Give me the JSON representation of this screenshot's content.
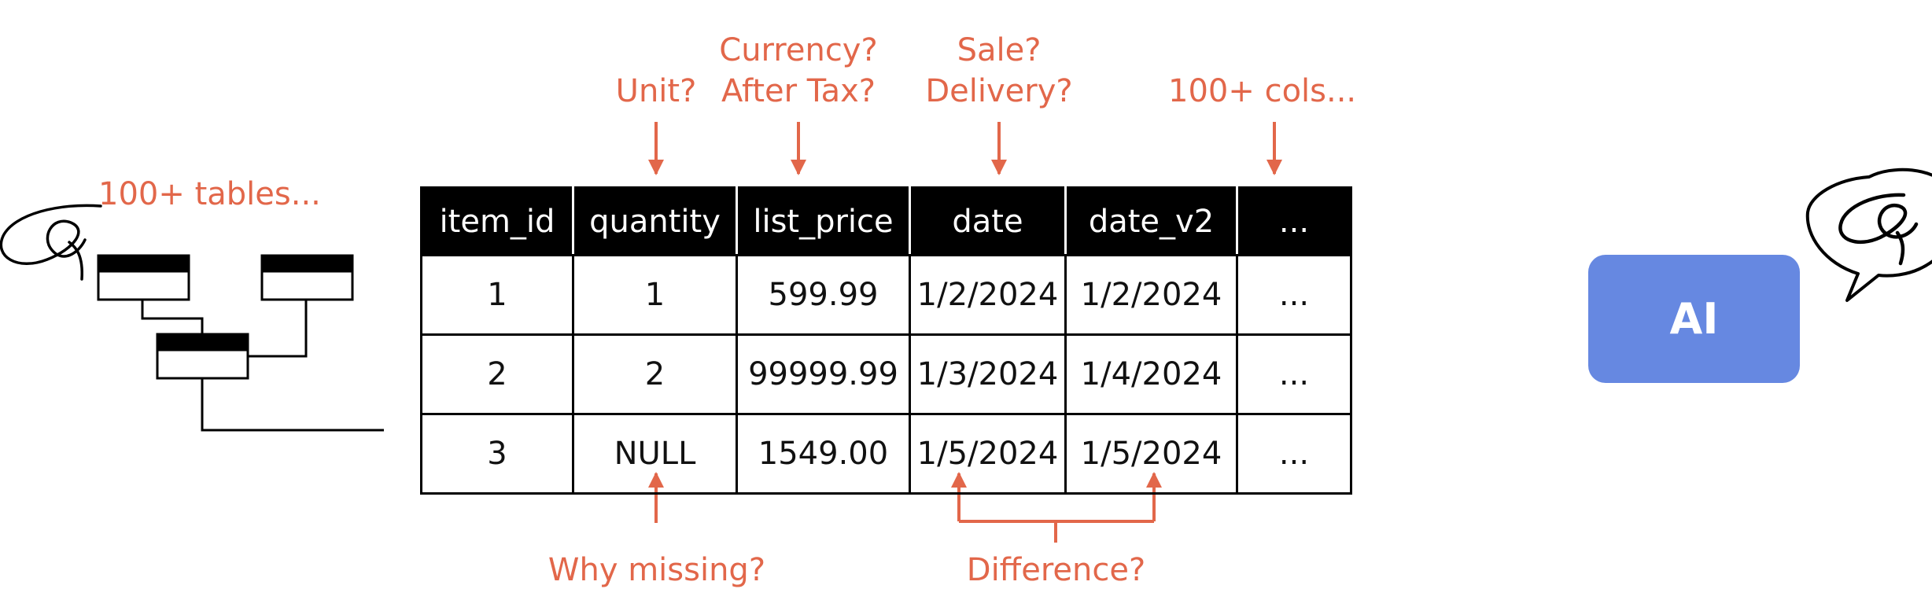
{
  "annotations": {
    "tables": "100+ tables...",
    "unit": "Unit?",
    "currency": "Currency?",
    "after_tax": "After Tax?",
    "sale": "Sale?",
    "delivery": "Delivery?",
    "cols": "100+ cols...",
    "why_missing": "Why missing?",
    "difference": "Difference?"
  },
  "table": {
    "headers": [
      "item_id",
      "quantity",
      "list_price",
      "date",
      "date_v2",
      "..."
    ],
    "rows": [
      [
        "1",
        "1",
        "599.99",
        "1/2/2024",
        "1/2/2024",
        "..."
      ],
      [
        "2",
        "2",
        "99999.99",
        "1/3/2024",
        "1/4/2024",
        "..."
      ],
      [
        "3",
        "NULL",
        "1549.00",
        "1/5/2024",
        "1/5/2024",
        "..."
      ]
    ]
  },
  "ai_label": "AI",
  "colors": {
    "accent": "#E2674A",
    "ai_box": "#6688E1",
    "header_bg": "#000000"
  }
}
